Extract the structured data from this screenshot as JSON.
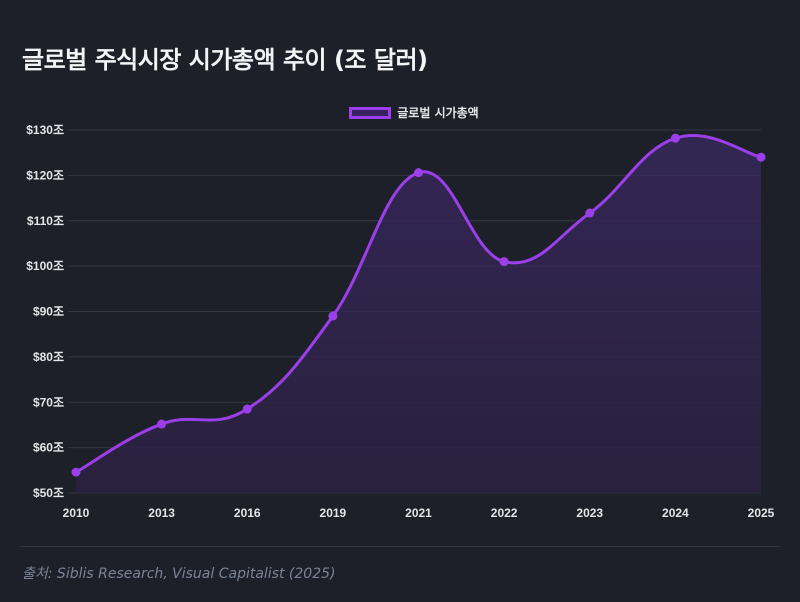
{
  "title": "글로벌 주식시장 시가총액 추이 (조 달러)",
  "footer": {
    "source": "출처: Siblis Research, Visual Capitalist (2025)"
  },
  "colors": {
    "background": "#1d2029",
    "line": "#9b3fe8",
    "fill": "#2d2342",
    "grid": "#343844"
  },
  "chart_data": {
    "type": "area",
    "title": "글로벌 주식시장 시가총액 추이 (조 달러)",
    "xlabel": "",
    "ylabel": "",
    "categories": [
      "2010",
      "2013",
      "2016",
      "2019",
      "2021",
      "2022",
      "2023",
      "2024",
      "2025"
    ],
    "series": [
      {
        "name": "글로벌 시가총액",
        "values": [
          54.6,
          65.2,
          68.5,
          89.0,
          120.6,
          101.0,
          111.7,
          128.2,
          124.0
        ]
      }
    ],
    "ylim": [
      50,
      130
    ],
    "yticks": [
      50,
      60,
      70,
      80,
      90,
      100,
      110,
      120,
      130
    ],
    "ytick_labels": [
      "$50조",
      "$60조",
      "$70조",
      "$80조",
      "$90조",
      "$100조",
      "$110조",
      "$120조",
      "$130조"
    ],
    "grid": true,
    "legend": "top-center",
    "curve": "smooth"
  }
}
